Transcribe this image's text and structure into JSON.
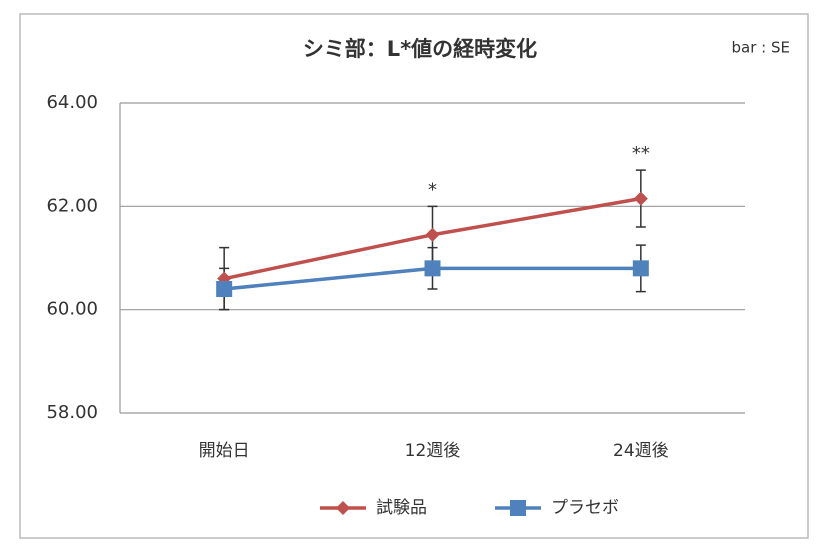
{
  "chart_data": {
    "type": "line",
    "title": "シミ部：L*値の経時変化",
    "note": "bar : SE",
    "categories": [
      "開始日",
      "12週後",
      "24週後"
    ],
    "series": [
      {
        "name": "試験品",
        "color": "#c0504d",
        "marker": "diamond",
        "values": [
          60.6,
          61.45,
          62.15
        ],
        "errors": [
          0.6,
          0.55,
          0.55
        ]
      },
      {
        "name": "プラセボ",
        "color": "#4f81bd",
        "marker": "square",
        "values": [
          60.4,
          60.8,
          60.8
        ],
        "errors": [
          0.4,
          0.4,
          0.45
        ]
      }
    ],
    "significance": [
      null,
      "*",
      "**"
    ],
    "ylim": [
      58,
      64
    ],
    "yticks": [
      {
        "value": 58,
        "label": "58.00"
      },
      {
        "value": 60,
        "label": "60.00"
      },
      {
        "value": 62,
        "label": "62.00"
      },
      {
        "value": 64,
        "label": "64.00"
      }
    ],
    "grid": true,
    "legend": "bottom"
  }
}
